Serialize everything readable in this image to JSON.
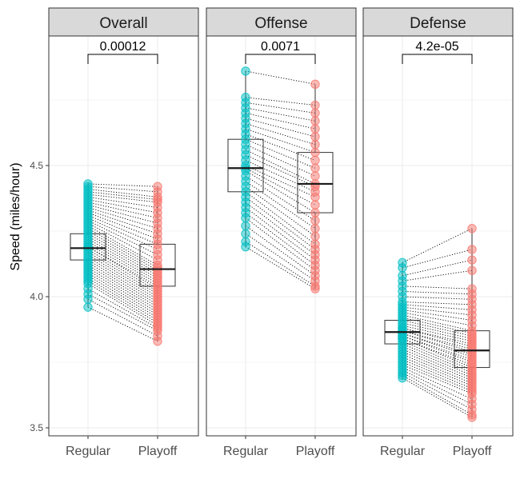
{
  "chart_data": {
    "type": "paired-boxplot",
    "ylabel": "Speed (miles/hour)",
    "ylim": [
      3.47,
      4.99
    ],
    "y_ticks": [
      3.5,
      4.0,
      4.5
    ],
    "y_tick_labels": [
      "3.5",
      "4.0",
      "4.5"
    ],
    "x_categories": [
      "Regular",
      "Playoff"
    ],
    "colors": {
      "Regular": "#00BFC4",
      "Playoff": "#F8766D",
      "strip": "#D9D9D9",
      "grid": "#EBEBEB"
    },
    "panels": [
      {
        "title": "Overall",
        "p_value": "0.00012",
        "box_regular": {
          "q1": 4.14,
          "median": 4.185,
          "q3": 4.24,
          "min": 3.96,
          "max": 4.43
        },
        "box_playoff": {
          "q1": 4.04,
          "median": 4.105,
          "q3": 4.2,
          "min": 3.83,
          "max": 4.42
        },
        "regular": [
          4.43,
          4.42,
          4.41,
          4.4,
          4.39,
          4.38,
          4.37,
          4.36,
          4.35,
          4.34,
          4.33,
          4.32,
          4.31,
          4.3,
          4.29,
          4.28,
          4.27,
          4.26,
          4.25,
          4.24,
          4.23,
          4.22,
          4.21,
          4.2,
          4.19,
          4.19,
          4.18,
          4.17,
          4.16,
          4.15,
          4.14,
          4.13,
          4.12,
          4.11,
          4.1,
          4.09,
          4.08,
          4.07,
          4.06,
          4.05,
          4.03,
          4.01,
          3.99,
          3.96
        ],
        "playoff": [
          4.42,
          4.4,
          4.38,
          4.37,
          4.36,
          4.34,
          4.32,
          4.3,
          4.28,
          4.26,
          4.24,
          4.22,
          4.2,
          4.18,
          4.16,
          4.14,
          4.12,
          4.11,
          4.1,
          4.09,
          4.08,
          4.07,
          4.06,
          4.05,
          4.04,
          4.03,
          4.02,
          4.01,
          4.0,
          3.99,
          3.98,
          3.97,
          3.96,
          3.95,
          3.94,
          3.93,
          3.92,
          3.91,
          3.9,
          3.89,
          3.88,
          3.87,
          3.85,
          3.83
        ]
      },
      {
        "title": "Offense",
        "p_value": "0.0071",
        "box_regular": {
          "q1": 4.4,
          "median": 4.49,
          "q3": 4.6,
          "min": 4.19,
          "max": 4.86
        },
        "box_playoff": {
          "q1": 4.32,
          "median": 4.43,
          "q3": 4.55,
          "min": 4.03,
          "max": 4.81
        },
        "regular": [
          4.86,
          4.76,
          4.74,
          4.72,
          4.7,
          4.68,
          4.66,
          4.64,
          4.62,
          4.6,
          4.58,
          4.56,
          4.54,
          4.52,
          4.5,
          4.49,
          4.48,
          4.46,
          4.44,
          4.42,
          4.4,
          4.38,
          4.36,
          4.34,
          4.32,
          4.3,
          4.27,
          4.24,
          4.21,
          4.19
        ],
        "playoff": [
          4.81,
          4.73,
          4.7,
          4.67,
          4.64,
          4.61,
          4.58,
          4.55,
          4.52,
          4.49,
          4.46,
          4.43,
          4.42,
          4.4,
          4.38,
          4.35,
          4.32,
          4.29,
          4.26,
          4.23,
          4.2,
          4.18,
          4.16,
          4.14,
          4.12,
          4.1,
          4.08,
          4.06,
          4.04,
          4.03
        ]
      },
      {
        "title": "Defense",
        "p_value": "4.2e-05",
        "box_regular": {
          "q1": 3.82,
          "median": 3.865,
          "q3": 3.91,
          "min": 3.69,
          "max": 4.13
        },
        "box_playoff": {
          "q1": 3.73,
          "median": 3.795,
          "q3": 3.87,
          "min": 3.54,
          "max": 4.26
        },
        "regular": [
          4.13,
          4.11,
          4.08,
          4.06,
          4.04,
          4.02,
          4.0,
          3.98,
          3.97,
          3.96,
          3.95,
          3.94,
          3.93,
          3.92,
          3.91,
          3.9,
          3.89,
          3.88,
          3.88,
          3.87,
          3.87,
          3.86,
          3.86,
          3.85,
          3.85,
          3.84,
          3.84,
          3.83,
          3.82,
          3.81,
          3.8,
          3.79,
          3.78,
          3.77,
          3.76,
          3.75,
          3.74,
          3.73,
          3.72,
          3.71,
          3.7,
          3.69
        ],
        "playoff": [
          4.26,
          4.18,
          4.14,
          4.1,
          4.03,
          4.01,
          3.99,
          3.97,
          3.95,
          3.93,
          3.91,
          3.89,
          3.87,
          3.86,
          3.85,
          3.84,
          3.83,
          3.82,
          3.81,
          3.8,
          3.79,
          3.78,
          3.77,
          3.76,
          3.75,
          3.74,
          3.73,
          3.72,
          3.71,
          3.7,
          3.69,
          3.68,
          3.67,
          3.66,
          3.65,
          3.64,
          3.63,
          3.61,
          3.59,
          3.57,
          3.55,
          3.54
        ]
      }
    ]
  }
}
